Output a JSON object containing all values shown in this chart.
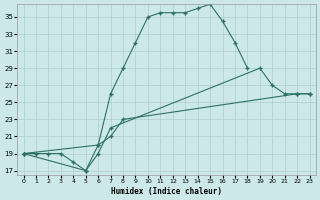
{
  "xlabel": "Humidex (Indice chaleur)",
  "bg_color": "#cce8e8",
  "line_color": "#2d7068",
  "grid_color": "#b0cccc",
  "xlim": [
    -0.5,
    23.5
  ],
  "ylim": [
    16.5,
    36.5
  ],
  "xticks": [
    0,
    1,
    2,
    3,
    4,
    5,
    6,
    7,
    8,
    9,
    10,
    11,
    12,
    13,
    14,
    15,
    16,
    17,
    18,
    19,
    20,
    21,
    22,
    23
  ],
  "yticks": [
    17,
    19,
    21,
    23,
    25,
    27,
    29,
    31,
    33,
    35
  ],
  "line1_x": [
    0,
    1,
    2,
    3,
    4,
    5,
    6,
    7,
    8,
    9,
    10,
    11,
    12,
    13,
    14,
    15,
    16,
    17,
    18
  ],
  "line1_y": [
    19,
    19,
    19,
    19,
    18,
    17,
    20,
    26,
    29,
    32,
    35,
    35.5,
    35.5,
    35.5,
    36,
    36.5,
    34.5,
    32,
    29
  ],
  "line2_x": [
    0,
    5,
    6,
    7,
    19,
    20,
    21,
    22,
    23
  ],
  "line2_y": [
    19,
    17,
    19,
    22,
    29,
    27,
    26,
    26,
    26
  ],
  "line3_x": [
    0,
    6,
    7,
    8,
    22,
    23
  ],
  "line3_y": [
    19,
    20,
    21,
    23,
    26,
    26
  ]
}
